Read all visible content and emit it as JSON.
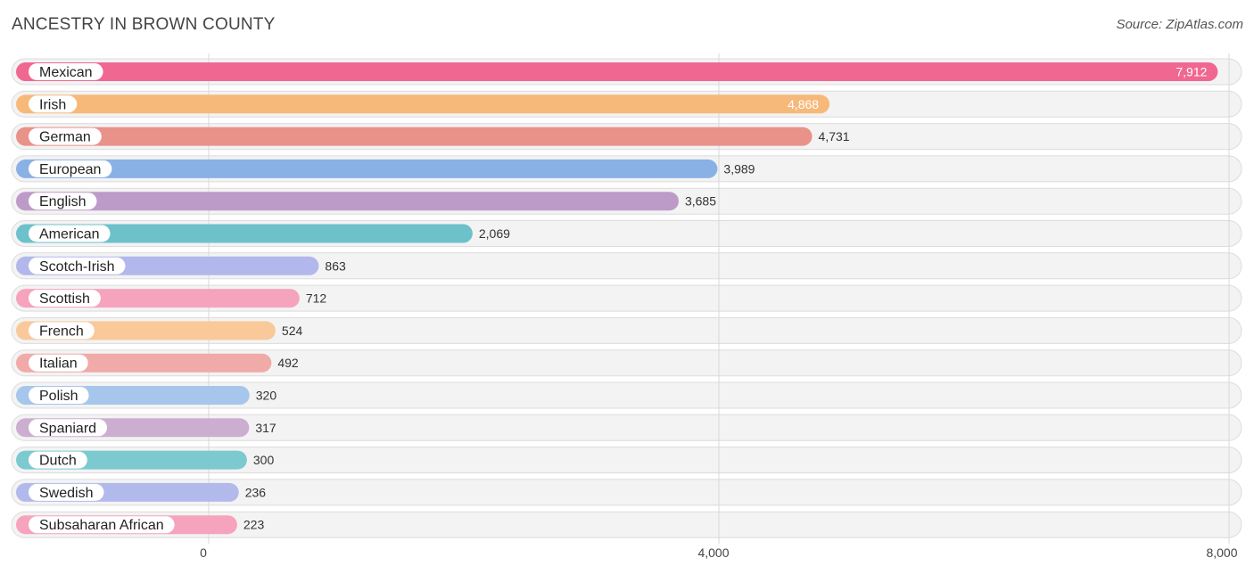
{
  "title": "ANCESTRY IN BROWN COUNTY",
  "source": "Source: ZipAtlas.com",
  "chart_data": {
    "type": "bar",
    "orientation": "horizontal",
    "title": "ANCESTRY IN BROWN COUNTY",
    "categories": [
      "Mexican",
      "Irish",
      "German",
      "European",
      "English",
      "American",
      "Scotch-Irish",
      "Scottish",
      "French",
      "Italian",
      "Polish",
      "Spaniard",
      "Dutch",
      "Swedish",
      "Subsaharan African"
    ],
    "values": [
      7912,
      4868,
      4731,
      3989,
      3685,
      2069,
      863,
      712,
      524,
      492,
      320,
      317,
      300,
      236,
      223
    ],
    "value_labels": [
      "7,912",
      "4,868",
      "4,731",
      "3,989",
      "3,685",
      "2,069",
      "863",
      "712",
      "524",
      "492",
      "320",
      "317",
      "300",
      "236",
      "223"
    ],
    "colors": [
      "#f06791",
      "#f7b97a",
      "#e8928a",
      "#8ab1e6",
      "#bd9bc8",
      "#6cc1cb",
      "#b2b8ec",
      "#f6a3bd",
      "#f9c99a",
      "#f0aaa8",
      "#a6c6ec",
      "#ccaed0",
      "#7ccad0",
      "#b2baec",
      "#f6a3bd"
    ],
    "xlim": [
      0,
      8000
    ],
    "ticks": [
      0,
      4000,
      8000
    ],
    "tick_labels": [
      "0",
      "4,000",
      "8,000"
    ],
    "grid": true
  }
}
